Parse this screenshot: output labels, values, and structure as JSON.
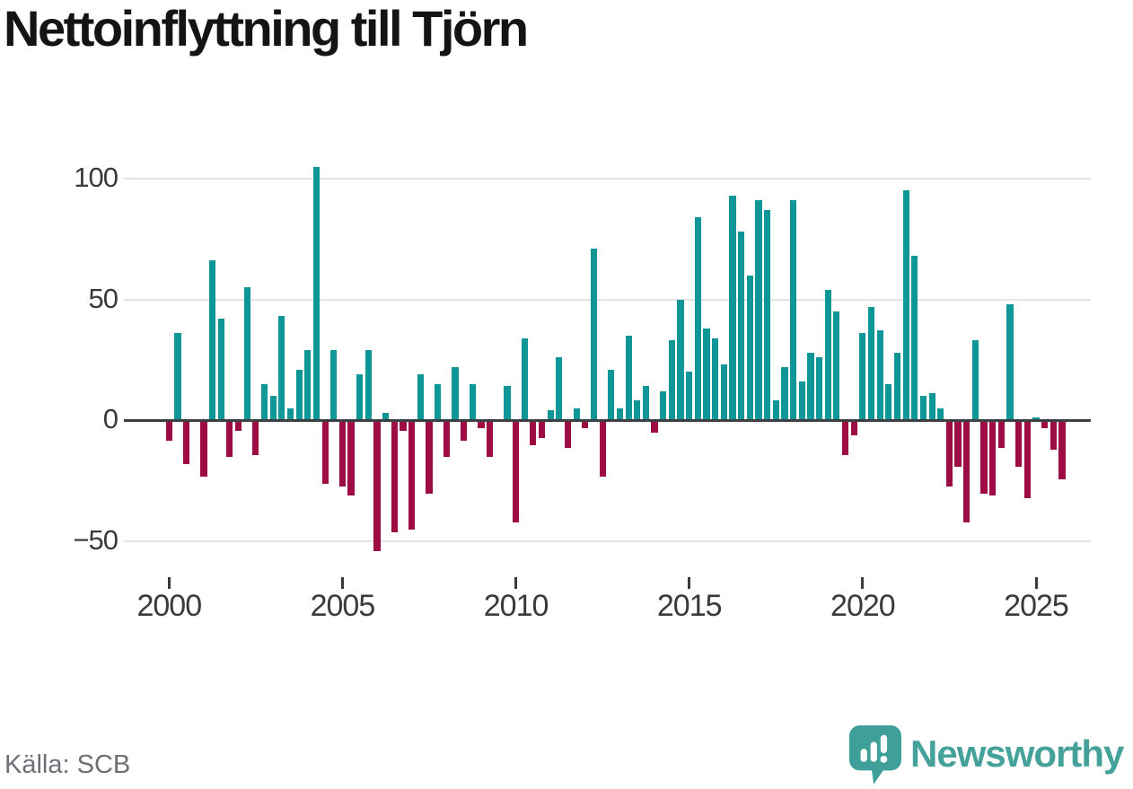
{
  "title": "Nettoinflyttning till Tjörn",
  "source": "Källa: SCB",
  "branding": {
    "name": "Newsworthy"
  },
  "colors": {
    "positive": "#0f9697",
    "negative": "#9e0c44",
    "axis": "#3c4043",
    "gridline": "#e3e3e3",
    "title_text": "#141414",
    "tick_label": "#3a3a3a",
    "source_text": "#6d7076",
    "brand": "#45a29a"
  },
  "chart_data": {
    "type": "bar",
    "title": "Nettoinflyttning till Tjörn",
    "xlabel": "",
    "ylabel": "",
    "period": "quarterly",
    "grid": "horizontal",
    "y_ticks": [
      100,
      50,
      0,
      -50
    ],
    "ylim": [
      -60,
      112
    ],
    "x_tick_years": [
      2000,
      2005,
      2010,
      2015,
      2020,
      2025
    ],
    "years": [
      {
        "year": 2000,
        "q": [
          -8,
          36,
          -18,
          0
        ]
      },
      {
        "year": 2001,
        "q": [
          -23,
          66,
          42,
          -15
        ]
      },
      {
        "year": 2002,
        "q": [
          -4,
          55,
          -14,
          15
        ]
      },
      {
        "year": 2003,
        "q": [
          10,
          43,
          5,
          21
        ]
      },
      {
        "year": 2004,
        "q": [
          29,
          105,
          -26,
          29
        ]
      },
      {
        "year": 2005,
        "q": [
          -27,
          -31,
          19,
          29
        ]
      },
      {
        "year": 2006,
        "q": [
          -54,
          3,
          -46,
          -4
        ]
      },
      {
        "year": 2007,
        "q": [
          -45,
          19,
          -30,
          15
        ]
      },
      {
        "year": 2008,
        "q": [
          -15,
          22,
          -8,
          15
        ]
      },
      {
        "year": 2009,
        "q": [
          -3,
          -15,
          0,
          14
        ]
      },
      {
        "year": 2010,
        "q": [
          -42,
          34,
          -10,
          -7
        ]
      },
      {
        "year": 2011,
        "q": [
          4,
          26,
          -11,
          5
        ]
      },
      {
        "year": 2012,
        "q": [
          -3,
          71,
          -23,
          21
        ]
      },
      {
        "year": 2013,
        "q": [
          5,
          35,
          8,
          14
        ]
      },
      {
        "year": 2014,
        "q": [
          -5,
          12,
          33,
          50
        ]
      },
      {
        "year": 2015,
        "q": [
          20,
          84,
          38,
          34
        ]
      },
      {
        "year": 2016,
        "q": [
          23,
          93,
          78,
          60
        ]
      },
      {
        "year": 2017,
        "q": [
          91,
          87,
          8,
          22
        ]
      },
      {
        "year": 2018,
        "q": [
          91,
          16,
          28,
          26
        ]
      },
      {
        "year": 2019,
        "q": [
          54,
          45,
          -14,
          -6
        ]
      },
      {
        "year": 2020,
        "q": [
          36,
          47,
          37,
          15
        ]
      },
      {
        "year": 2021,
        "q": [
          28,
          95,
          68,
          10
        ]
      },
      {
        "year": 2022,
        "q": [
          11,
          5,
          -27,
          -19
        ]
      },
      {
        "year": 2023,
        "q": [
          -42,
          33,
          -30,
          -31
        ]
      },
      {
        "year": 2024,
        "q": [
          -11,
          48,
          -19,
          -32
        ]
      },
      {
        "year": 2025,
        "q": [
          1,
          -3,
          -12,
          -24
        ]
      }
    ]
  }
}
